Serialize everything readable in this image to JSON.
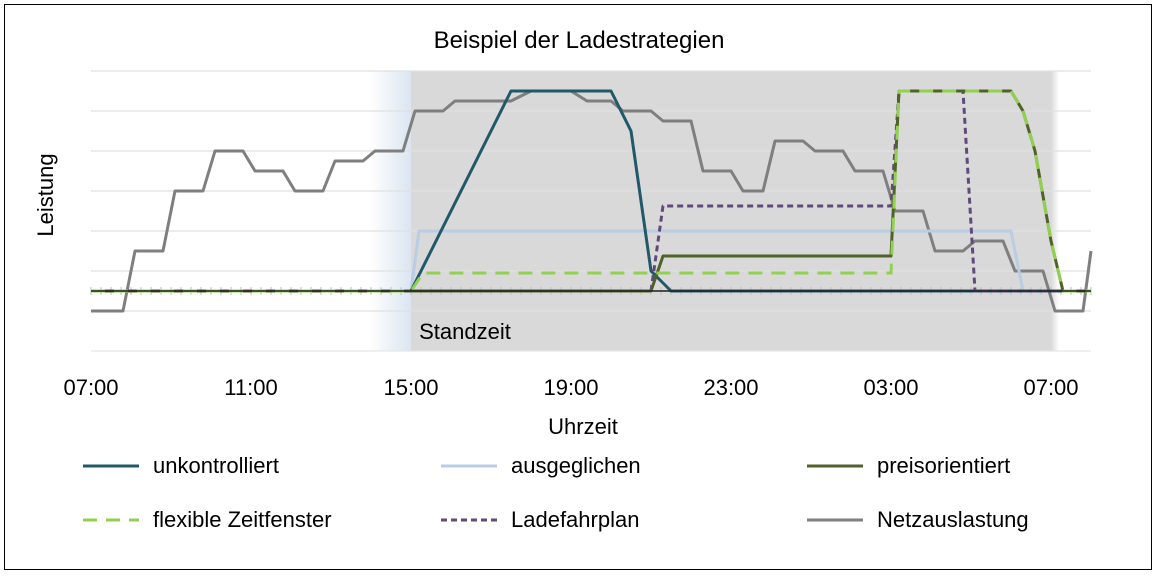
{
  "chart_data": {
    "type": "line",
    "title": "Beispiel der Ladestrategien",
    "xlabel": "Uhrzeit",
    "ylabel": "Leistung",
    "x_tick_labels": [
      "07:00",
      "11:00",
      "15:00",
      "19:00",
      "23:00",
      "03:00",
      "07:00"
    ],
    "x_range_hours": [
      0,
      25
    ],
    "y_range": [
      -6,
      22
    ],
    "grid": true,
    "legend_position": "bottom",
    "annotation": {
      "text": "Standzeit",
      "start_hour": 8,
      "end_hour": 24,
      "color": "#d9d9d9"
    },
    "series": [
      {
        "name": "unkontrolliert",
        "color": "#215968",
        "dash": "solid",
        "points": [
          [
            0,
            0
          ],
          [
            8,
            0
          ],
          [
            10.5,
            20
          ],
          [
            13,
            20
          ],
          [
            13.5,
            16
          ],
          [
            14,
            2
          ],
          [
            14.5,
            0
          ],
          [
            25,
            0
          ]
        ]
      },
      {
        "name": "ausgeglichen",
        "color": "#b9cde5",
        "dash": "solid",
        "points": [
          [
            0,
            0
          ],
          [
            8,
            0
          ],
          [
            8.2,
            6
          ],
          [
            23,
            6
          ],
          [
            23.3,
            0
          ],
          [
            25,
            0
          ]
        ]
      },
      {
        "name": "preisorientiert",
        "color": "#4f6228",
        "dash": "solid",
        "points": [
          [
            0,
            0
          ],
          [
            14,
            0
          ],
          [
            14.3,
            3.5
          ],
          [
            20,
            3.5
          ],
          [
            20.2,
            20
          ],
          [
            23,
            20
          ],
          [
            23.3,
            18
          ],
          [
            23.6,
            14
          ],
          [
            24,
            5
          ],
          [
            24.3,
            0
          ],
          [
            25,
            0
          ]
        ]
      },
      {
        "name": "flexible Zeitfenster",
        "color": "#92d050",
        "dash": "dashed",
        "points": [
          [
            0,
            0
          ],
          [
            8,
            0
          ],
          [
            8.3,
            1.8
          ],
          [
            20,
            1.8
          ],
          [
            20.2,
            20
          ],
          [
            23,
            20
          ],
          [
            23.3,
            18
          ],
          [
            23.6,
            14
          ],
          [
            24,
            5
          ],
          [
            24.3,
            0
          ],
          [
            25,
            0
          ]
        ]
      },
      {
        "name": "Ladefahrplan",
        "color": "#604a7b",
        "dash": "dotted",
        "points": [
          [
            0,
            0
          ],
          [
            14,
            0
          ],
          [
            14.3,
            8.5
          ],
          [
            20,
            8.5
          ],
          [
            20.2,
            20
          ],
          [
            21.8,
            20
          ],
          [
            22.1,
            0
          ],
          [
            25,
            0
          ]
        ]
      },
      {
        "name": "Netzauslastung",
        "color": "#7f7f7f",
        "dash": "solid",
        "points": [
          [
            0,
            -2
          ],
          [
            0.8,
            -2
          ],
          [
            1.1,
            4
          ],
          [
            1.8,
            4
          ],
          [
            2.1,
            10
          ],
          [
            2.8,
            10
          ],
          [
            3.1,
            14
          ],
          [
            3.8,
            14
          ],
          [
            4.1,
            12
          ],
          [
            4.8,
            12
          ],
          [
            5.1,
            10
          ],
          [
            5.8,
            10
          ],
          [
            6.1,
            13
          ],
          [
            6.8,
            13
          ],
          [
            7.1,
            14
          ],
          [
            7.8,
            14
          ],
          [
            8.1,
            18
          ],
          [
            8.8,
            18
          ],
          [
            9.1,
            19
          ],
          [
            10.5,
            19
          ],
          [
            11,
            20
          ],
          [
            12,
            20
          ],
          [
            12.4,
            19
          ],
          [
            13,
            19
          ],
          [
            13.3,
            18
          ],
          [
            14,
            18
          ],
          [
            14.3,
            17
          ],
          [
            15,
            17
          ],
          [
            15.3,
            12
          ],
          [
            16,
            12
          ],
          [
            16.3,
            10
          ],
          [
            16.8,
            10
          ],
          [
            17.1,
            15
          ],
          [
            17.8,
            15
          ],
          [
            18.1,
            14
          ],
          [
            18.8,
            14
          ],
          [
            19.1,
            12
          ],
          [
            19.8,
            12
          ],
          [
            20.1,
            8
          ],
          [
            20.8,
            8
          ],
          [
            21.1,
            4
          ],
          [
            21.8,
            4
          ],
          [
            22.1,
            5
          ],
          [
            22.8,
            5
          ],
          [
            23.1,
            2
          ],
          [
            23.8,
            2
          ],
          [
            24.1,
            -2
          ],
          [
            24.8,
            -2
          ],
          [
            25,
            4
          ]
        ]
      }
    ]
  }
}
